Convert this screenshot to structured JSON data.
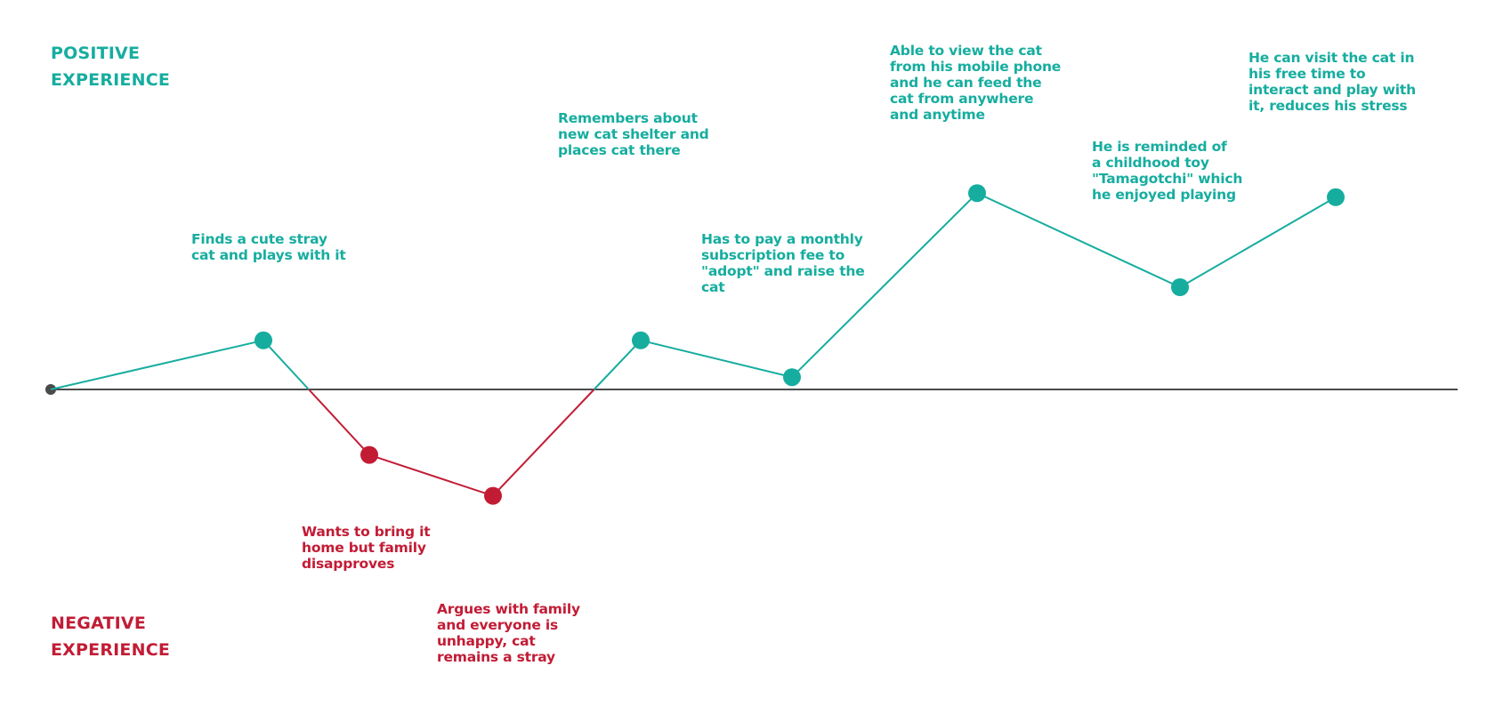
{
  "colors": {
    "positive": "#16ad9f",
    "negative": "#c21c35",
    "baseline": "#4a4a4a"
  },
  "labels": {
    "positive": "POSITIVE\nEXPERIENCE",
    "negative": "NEGATIVE\nEXPERIENCE"
  },
  "steps": [
    {
      "text": "Finds a cute stray\ncat and plays with it",
      "sentiment": "positive",
      "level": 0.6
    },
    {
      "text": "Wants to bring it\nhome but family\ndisapproves",
      "sentiment": "negative",
      "level": -0.8
    },
    {
      "text": "Argues with family\nand everyone is\nunhappy, cat\nremains a stray",
      "sentiment": "negative",
      "level": -1.3
    },
    {
      "text": "Remembers about\nnew cat shelter and\nplaces cat there",
      "sentiment": "positive",
      "level": 0.6
    },
    {
      "text": "Has to pay a monthly\nsubscription fee to\n\"adopt\" and raise the\ncat",
      "sentiment": "positive",
      "level": 0.15
    },
    {
      "text": "Able to view the cat\nfrom his mobile phone\nand he can feed the\ncat from anywhere\nand anytime",
      "sentiment": "positive",
      "level": 2.4
    },
    {
      "text": "He is reminded of\na childhood toy\n\"Tamagotchi\" which\nhe enjoyed playing",
      "sentiment": "positive",
      "level": 1.25
    },
    {
      "text": "He can visit the cat in\nhis free time to\ninteract and play with\nit, reduces his stress",
      "sentiment": "positive",
      "level": 2.35
    }
  ]
}
